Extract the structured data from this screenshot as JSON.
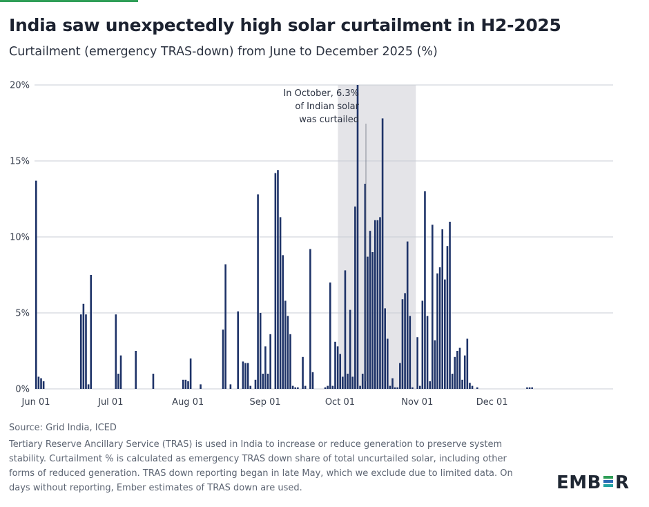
{
  "header": {
    "title": "India saw unexpectedly high solar curtailment in H2-2025",
    "subtitle": "Curtailment (emergency TRAS-down) from June to December 2025 (%)"
  },
  "footer": {
    "source": "Source: Grid India, ICED",
    "note": "Tertiary Reserve Ancillary Service (TRAS) is used in India to increase or reduce generation to preserve system stability. Curtailment % is calculated as emergency TRAS down share of total uncurtailed solar, including other forms of reduced generation. TRAS down reporting began in late May, which we exclude due to limited data. On days without reporting, Ember estimates of TRAS down are used.",
    "logo_left": "EMB",
    "logo_right": "R"
  },
  "colors": {
    "bar": "#1e3368",
    "grid": "#c8ccd4",
    "highlight": "#e4e4e8",
    "logo_green": "#2f9e57",
    "logo_blue": "#2a6ab5",
    "logo_teal": "#22a3a1"
  },
  "chart_data": {
    "type": "bar",
    "title": "Curtailment (emergency TRAS-down) from June to December 2025 (%)",
    "xlabel": "",
    "ylabel": "",
    "ylim": [
      0,
      20
    ],
    "yticks": [
      0,
      5,
      10,
      15,
      20
    ],
    "ytick_labels": [
      "0%",
      "5%",
      "10%",
      "15%",
      "20%"
    ],
    "x_start": "2025-06-01",
    "xtick_labels": [
      "Jun 01",
      "Jul 01",
      "Aug 01",
      "Sep 01",
      "Oct 01",
      "Nov 01",
      "Dec 01"
    ],
    "xtick_day_index": [
      0,
      30,
      61,
      92,
      122,
      153,
      183
    ],
    "highlight": {
      "label": "October",
      "start_day_index": 122,
      "end_day_index": 153
    },
    "annotation": {
      "lines": [
        "In October, 6.3%",
        "of Indian solar",
        "was curtailed"
      ]
    },
    "values": [
      13.7,
      0.8,
      0.7,
      0.5,
      0,
      0,
      0,
      0,
      0,
      0,
      0,
      0,
      0,
      0,
      0,
      0,
      0,
      0,
      4.9,
      5.6,
      4.9,
      0.3,
      7.5,
      0,
      0,
      0,
      0,
      0,
      0,
      0,
      0,
      0,
      4.9,
      1.0,
      2.2,
      0,
      0,
      0,
      0,
      0,
      2.5,
      0,
      0,
      0,
      0,
      0,
      0,
      1.0,
      0,
      0,
      0,
      0,
      0,
      0,
      0,
      0,
      0,
      0,
      0,
      0.6,
      0.6,
      0.5,
      2.0,
      0,
      0,
      0,
      0.3,
      0,
      0,
      0,
      0,
      0,
      0,
      0,
      0,
      3.9,
      8.2,
      0,
      0.3,
      0,
      0,
      5.1,
      0,
      1.8,
      1.7,
      1.7,
      0.2,
      0,
      0.6,
      12.8,
      5.0,
      1.0,
      2.8,
      1.0,
      3.6,
      0,
      14.2,
      14.4,
      11.3,
      8.8,
      5.8,
      4.8,
      3.6,
      0.2,
      0.1,
      0.1,
      0,
      2.1,
      0.2,
      0,
      9.2,
      1.1,
      0,
      0,
      0,
      0,
      0.1,
      0.2,
      7.0,
      0.2,
      3.1,
      2.8,
      2.3,
      0.8,
      7.8,
      1.0,
      5.2,
      0.8,
      12.0,
      20.0,
      0.2,
      1.0,
      13.5,
      8.7,
      10.4,
      9.0,
      11.1,
      11.1,
      11.3,
      17.8,
      5.3,
      3.3,
      0.2,
      0.7,
      0.1,
      0.1,
      1.7,
      5.9,
      6.3,
      9.7,
      4.8,
      0.1,
      0,
      3.4,
      0.2,
      5.8,
      13.0,
      4.8,
      0.5,
      10.8,
      3.2,
      7.6,
      8.0,
      10.5,
      7.2,
      9.4,
      11.0,
      1.0,
      2.1,
      2.5,
      2.7,
      0.6,
      2.2,
      3.3,
      0.4,
      0.2,
      0,
      0.1,
      0,
      0,
      0,
      0,
      0,
      0,
      0,
      0,
      0,
      0,
      0,
      0,
      0,
      0,
      0,
      0,
      0,
      0,
      0,
      0.1,
      0.1,
      0.1
    ]
  }
}
